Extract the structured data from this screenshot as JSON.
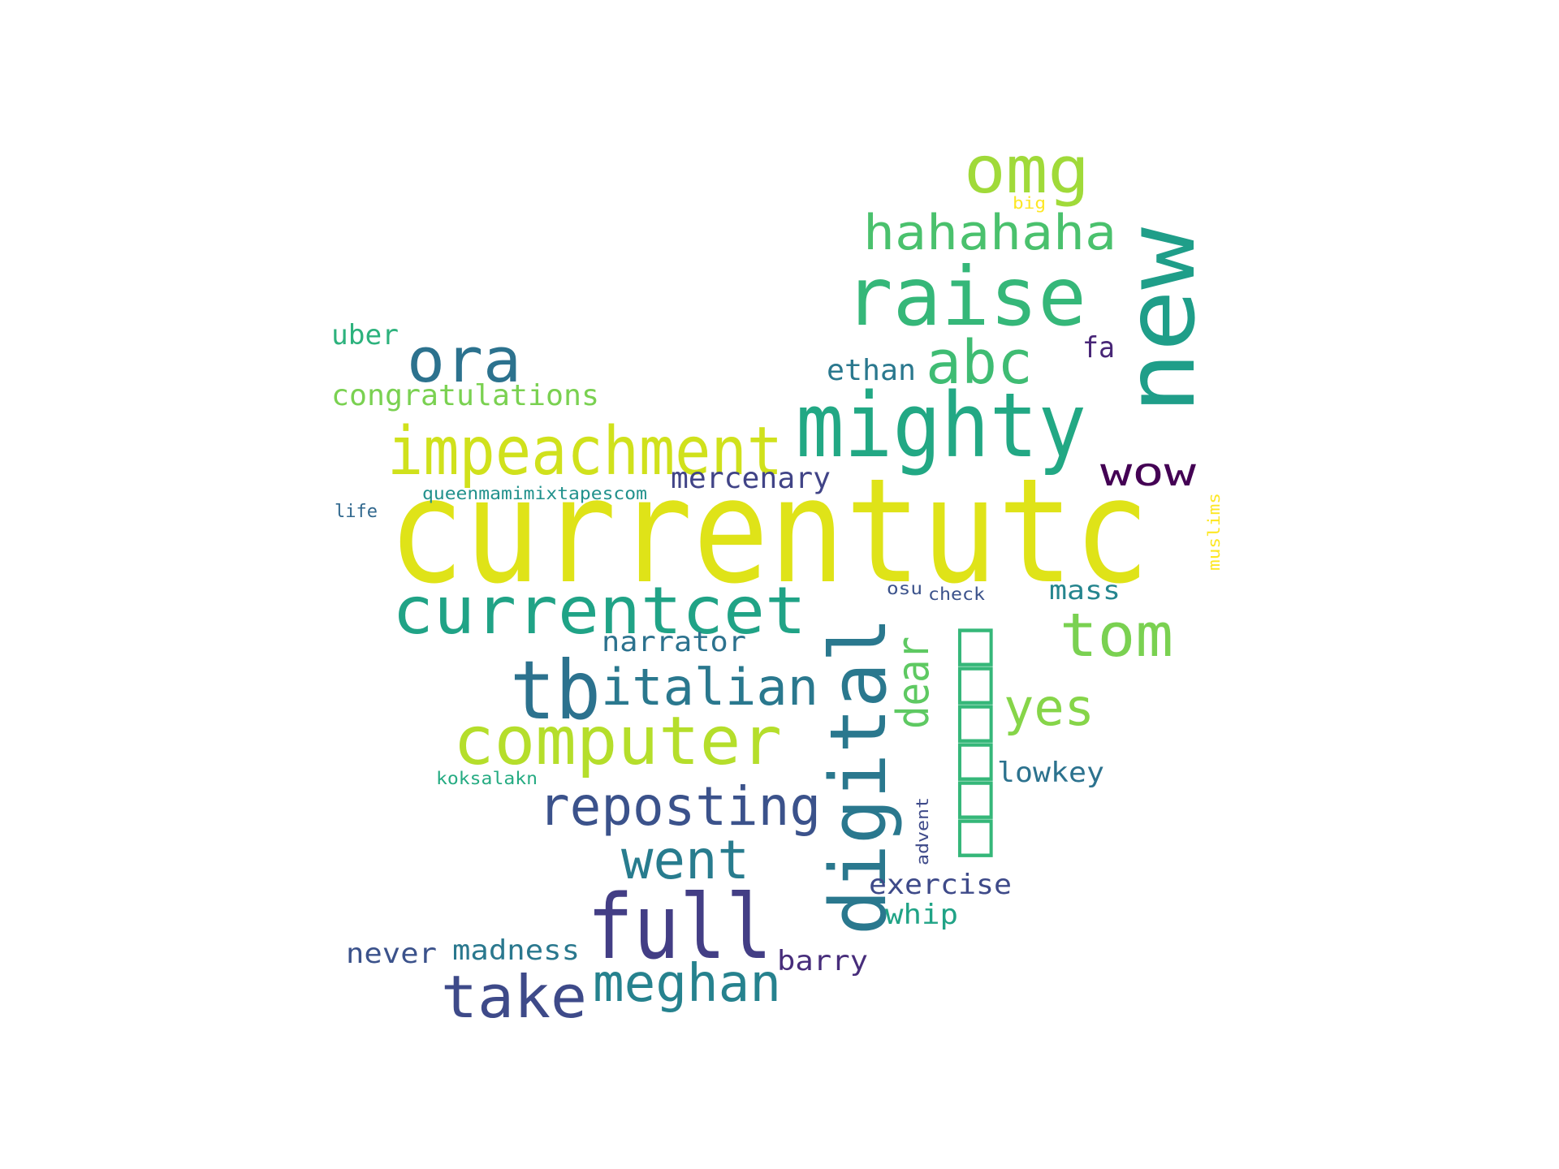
{
  "words": [
    {
      "text": "currentutc",
      "color": "#dfe318"
    },
    {
      "text": "new",
      "color": "#1f9e89"
    },
    {
      "text": "mighty",
      "color": "#22a884"
    },
    {
      "text": "raise",
      "color": "#35b779"
    },
    {
      "text": "omg",
      "color": "#a0da39"
    },
    {
      "text": "hahahaha",
      "color": "#4ac16d"
    },
    {
      "text": "ora",
      "color": "#2c728e"
    },
    {
      "text": "abc",
      "color": "#3fbc73"
    },
    {
      "text": "impeachment",
      "color": "#d0e11c"
    },
    {
      "text": "wow",
      "color": "#440154"
    },
    {
      "text": "ethan",
      "color": "#2a788e"
    },
    {
      "text": "fa",
      "color": "#482677"
    },
    {
      "text": "uber",
      "color": "#2db27d"
    },
    {
      "text": "congratulations",
      "color": "#7ad151"
    },
    {
      "text": "mercenary",
      "color": "#414487"
    },
    {
      "text": "queenmamimixtapescom",
      "color": "#21918c"
    },
    {
      "text": "life",
      "color": "#31688e"
    },
    {
      "text": "muslims",
      "color": "#fde725"
    },
    {
      "text": "big",
      "color": "#fde725"
    },
    {
      "text": "currentcet",
      "color": "#20a386"
    },
    {
      "text": "digital",
      "color": "#2a788e"
    },
    {
      "text": "tom",
      "color": "#7ad151"
    },
    {
      "text": "mass",
      "color": "#25858e"
    },
    {
      "text": "osu",
      "color": "#3b528b"
    },
    {
      "text": "check",
      "color": "#3b528b"
    },
    {
      "text": "narrator",
      "color": "#2c728e"
    },
    {
      "text": "tb",
      "color": "#2c728e"
    },
    {
      "text": "italian",
      "color": "#2a788e"
    },
    {
      "text": "dear",
      "color": "#5ec962"
    },
    {
      "text": "□□□□□□",
      "color": "#35b779"
    },
    {
      "text": "yes",
      "color": "#86d549"
    },
    {
      "text": "computer",
      "color": "#b5de2b"
    },
    {
      "text": "lowkey",
      "color": "#2c728e"
    },
    {
      "text": "koksalakn",
      "color": "#25ab82"
    },
    {
      "text": "reposting",
      "color": "#3b528b"
    },
    {
      "text": "advent",
      "color": "#3e4a89"
    },
    {
      "text": "went",
      "color": "#287c8e"
    },
    {
      "text": "exercise",
      "color": "#3e4a89"
    },
    {
      "text": "whip",
      "color": "#20a386"
    },
    {
      "text": "full",
      "color": "#433e85"
    },
    {
      "text": "never",
      "color": "#3b528b"
    },
    {
      "text": "madness",
      "color": "#2a788e"
    },
    {
      "text": "barry",
      "color": "#472d7b"
    },
    {
      "text": "take",
      "color": "#3e4a89"
    },
    {
      "text": "meghan",
      "color": "#26828e"
    }
  ]
}
